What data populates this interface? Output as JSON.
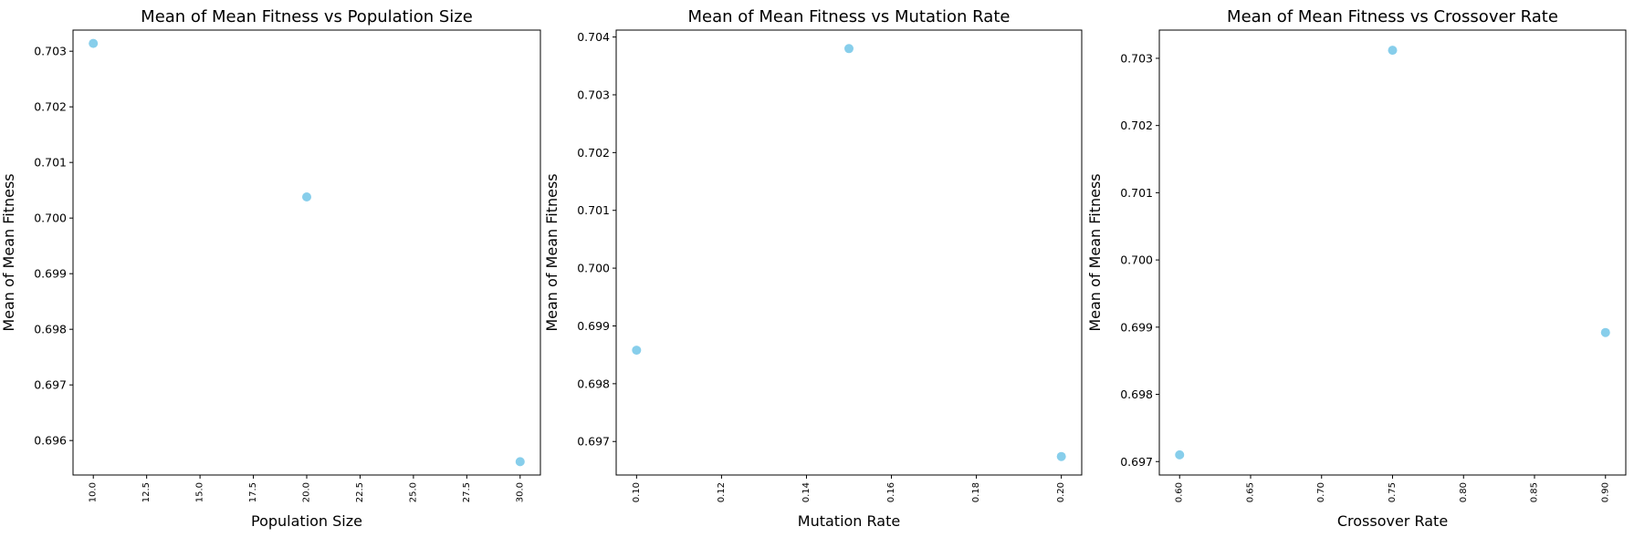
{
  "chart_data": [
    {
      "type": "scatter",
      "title": "Mean of Mean Fitness vs Population Size",
      "xlabel": "Population Size",
      "ylabel": "Mean of Mean Fitness",
      "x": [
        10,
        20,
        30
      ],
      "y": [
        0.70314,
        0.70038,
        0.69562
      ],
      "xlim": [
        9.05,
        30.95
      ],
      "ylim": [
        0.69538,
        0.70338
      ],
      "xticks": [
        10,
        12.5,
        15,
        17.5,
        20,
        22.5,
        25,
        27.5,
        30
      ],
      "xticklabels": [
        "10.0",
        "12.5",
        "15.0",
        "17.5",
        "20.0",
        "22.5",
        "25.0",
        "27.5",
        "30.0"
      ],
      "yticks": [
        0.696,
        0.697,
        0.698,
        0.699,
        0.7,
        0.701,
        0.702,
        0.703
      ],
      "yticklabels": [
        "0.696",
        "0.697",
        "0.698",
        "0.699",
        "0.700",
        "0.701",
        "0.702",
        "0.703"
      ],
      "color": "#87ceeb",
      "grid": false
    },
    {
      "type": "scatter",
      "title": "Mean of Mean Fitness vs Mutation Rate",
      "xlabel": "Mutation Rate",
      "ylabel": "Mean of Mean Fitness",
      "x": [
        0.1,
        0.15,
        0.2
      ],
      "y": [
        0.69858,
        0.7038,
        0.69674
      ],
      "xlim": [
        0.0952,
        0.2048
      ],
      "ylim": [
        0.69642,
        0.70412
      ],
      "xticks": [
        0.1,
        0.12,
        0.14,
        0.16,
        0.18,
        0.2
      ],
      "xticklabels": [
        "0.10",
        "0.12",
        "0.14",
        "0.16",
        "0.18",
        "0.20"
      ],
      "yticks": [
        0.697,
        0.698,
        0.699,
        0.7,
        0.701,
        0.702,
        0.703,
        0.704
      ],
      "yticklabels": [
        "0.697",
        "0.698",
        "0.699",
        "0.700",
        "0.701",
        "0.702",
        "0.703",
        "0.704"
      ],
      "color": "#87ceeb",
      "grid": false
    },
    {
      "type": "scatter",
      "title": "Mean of Mean Fitness vs Crossover Rate",
      "xlabel": "Crossover Rate",
      "ylabel": "Mean of Mean Fitness",
      "x": [
        0.6,
        0.75,
        0.9
      ],
      "y": [
        0.6971,
        0.70312,
        0.69892
      ],
      "xlim": [
        0.5857,
        0.9143
      ],
      "ylim": [
        0.6968,
        0.70342
      ],
      "xticks": [
        0.6,
        0.65,
        0.7,
        0.75,
        0.8,
        0.85,
        0.9
      ],
      "xticklabels": [
        "0.60",
        "0.65",
        "0.70",
        "0.75",
        "0.80",
        "0.85",
        "0.90"
      ],
      "yticks": [
        0.697,
        0.698,
        0.699,
        0.7,
        0.701,
        0.702,
        0.703
      ],
      "yticklabels": [
        "0.697",
        "0.698",
        "0.699",
        "0.700",
        "0.701",
        "0.702",
        "0.703"
      ],
      "color": "#87ceeb",
      "grid": false
    }
  ]
}
